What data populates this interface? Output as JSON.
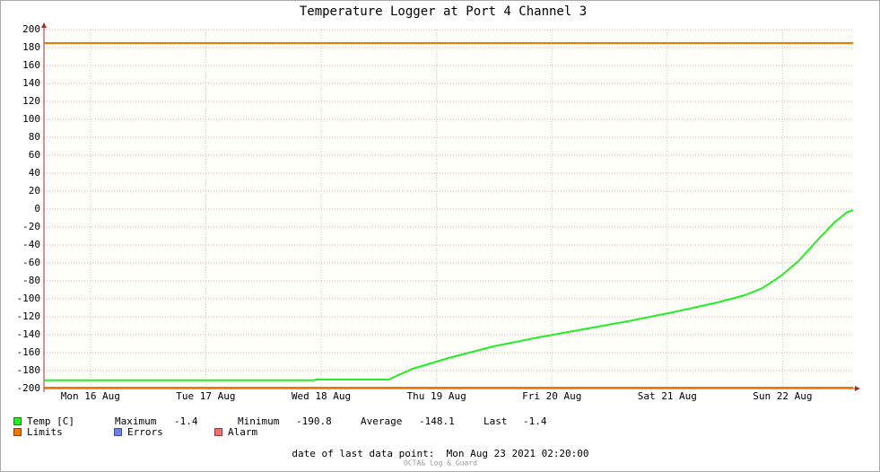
{
  "chart_data": {
    "type": "line",
    "title": "Temperature Logger at Port 4 Channel 3",
    "xlim": [
      16.097,
      23.111
    ],
    "xticks": [
      {
        "value": 16.5,
        "label": "Mon 16 Aug"
      },
      {
        "value": 17.5,
        "label": "Tue 17 Aug"
      },
      {
        "value": 18.5,
        "label": "Wed 18 Aug"
      },
      {
        "value": 19.5,
        "label": "Thu 19 Aug"
      },
      {
        "value": 20.5,
        "label": "Fri 20 Aug"
      },
      {
        "value": 21.5,
        "label": "Sat 21 Aug"
      },
      {
        "value": 22.5,
        "label": "Sun 22 Aug"
      }
    ],
    "ylim": [
      -200,
      200
    ],
    "yticks": [
      -200,
      -180,
      -160,
      -140,
      -120,
      -100,
      -80,
      -60,
      -40,
      -20,
      0,
      20,
      40,
      60,
      80,
      100,
      120,
      140,
      160,
      180,
      200
    ],
    "grid": true,
    "series": [
      {
        "name": "Temp [C]",
        "color": "#22ee22",
        "x": [
          16.097,
          18.438,
          18.453,
          19.083,
          19.293,
          19.604,
          19.993,
          20.382,
          20.77,
          21.159,
          21.548,
          21.937,
          22.17,
          22.326,
          22.481,
          22.637,
          22.792,
          22.948,
          23.064,
          23.111
        ],
        "values": [
          -190.8,
          -190.8,
          -190,
          -190,
          -178,
          -166,
          -153,
          -143,
          -134,
          -125,
          -115,
          -104,
          -96,
          -88,
          -75,
          -58,
          -36,
          -15,
          -3,
          -1.4
        ]
      },
      {
        "name": "Limits",
        "color": "#ee7700",
        "values": [
          185,
          -199
        ]
      },
      {
        "name": "Errors",
        "color": "#7080f0",
        "values": []
      },
      {
        "name": "Alarm",
        "color": "#f07070",
        "values": []
      }
    ],
    "stats": [
      {
        "label": "Maximum",
        "value": -1.4
      },
      {
        "label": "Minimum",
        "value": -190.8
      },
      {
        "label": "Average",
        "value": -148.1
      },
      {
        "label": "Last",
        "value": -1.4
      }
    ],
    "footer": "date of last data point:  Mon Aug 23 2021 02:20:00",
    "credit": "OCTA& Log & Guard"
  }
}
